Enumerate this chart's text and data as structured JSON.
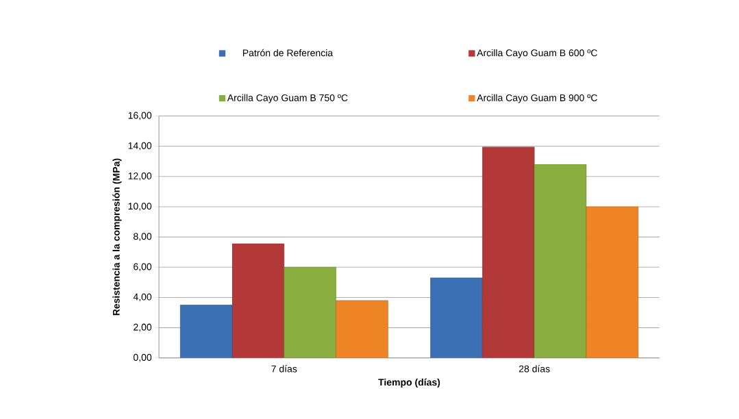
{
  "chart_data": {
    "type": "bar",
    "xlabel": "Tiempo (días)",
    "ylabel": "Resistencia a la compresión (MPa)",
    "categories": [
      "7 días",
      "28 días"
    ],
    "series": [
      {
        "name": "Patrón de Referencia",
        "color": "#3a6fb3",
        "values": [
          3.5,
          5.3
        ]
      },
      {
        "name": "Arcilla Cayo Guam B 600 ºC",
        "color": "#b33838",
        "values": [
          7.55,
          13.95
        ]
      },
      {
        "name": "Arcilla Cayo Guam B 750 ºC",
        "color": "#8aad3f",
        "values": [
          6.0,
          12.8
        ]
      },
      {
        "name": "Arcilla Cayo Guam B 900 ºC",
        "color": "#ef8426",
        "values": [
          3.8,
          10.0
        ]
      }
    ],
    "ylim": [
      0,
      16
    ],
    "yticks": [
      {
        "value": 0,
        "label": "0,00"
      },
      {
        "value": 2,
        "label": "2,00"
      },
      {
        "value": 4,
        "label": "4,00"
      },
      {
        "value": 6,
        "label": "6,00"
      },
      {
        "value": 8,
        "label": "8,00"
      },
      {
        "value": 10,
        "label": "10,00"
      },
      {
        "value": 12,
        "label": "12,00"
      },
      {
        "value": 14,
        "label": "14,00"
      },
      {
        "value": 16,
        "label": "16,00"
      }
    ],
    "grid": "y",
    "legend": "top"
  }
}
